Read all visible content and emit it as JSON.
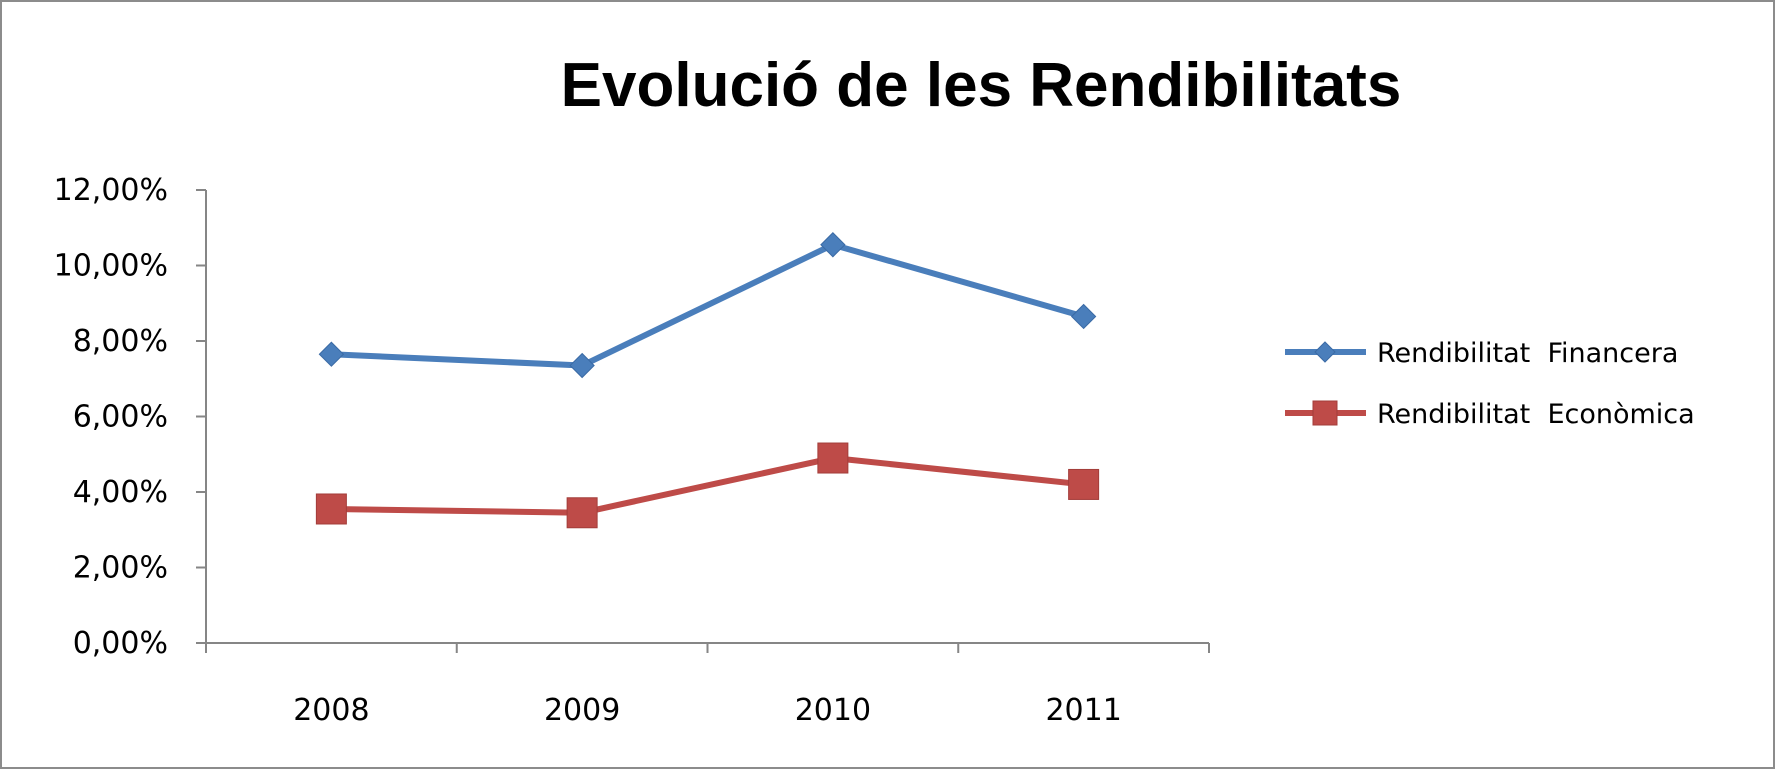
{
  "chart_data": {
    "type": "line",
    "title": "Evolució de les Rendibilitats",
    "xlabel": "",
    "ylabel": "",
    "categories": [
      "2008",
      "2009",
      "2010",
      "2011"
    ],
    "ylim": [
      0,
      12
    ],
    "y_ticks": [
      "0,00%",
      "2,00%",
      "4,00%",
      "6,00%",
      "8,00%",
      "10,00%",
      "12,00%"
    ],
    "grid": false,
    "legend_position": "right",
    "series": [
      {
        "name": "Rendibilitat  Financera",
        "values": [
          7.65,
          7.35,
          10.55,
          8.65
        ],
        "color": "#4a7ebb",
        "marker": "diamond"
      },
      {
        "name": "Rendibilitat  Econòmica",
        "values": [
          3.55,
          3.45,
          4.9,
          4.2
        ],
        "color": "#be4b48",
        "marker": "square"
      }
    ]
  }
}
